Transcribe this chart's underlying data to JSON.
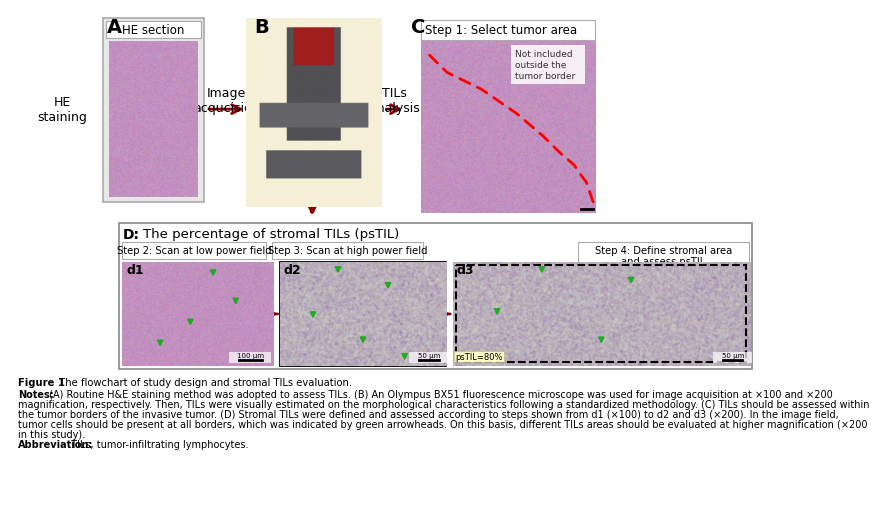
{
  "bg_color": "#ffffff",
  "panel_A_label": "A",
  "panel_B_label": "B",
  "panel_C_label": "C",
  "panel_D_label": "D:",
  "he_section_label": "HE section",
  "he_staining_label": "HE\nstaining",
  "image_acq_label": "Image\nacqucision",
  "tils_label": "TILs\nanalysis",
  "step1_label": "Step 1: Select tumor area",
  "not_included_label": "Not included\noutside the\ntumor border",
  "panel_D_title": "The percentage of stromal TILs (psTIL)",
  "step2_label": "Step 2: Scan at low power field",
  "step3_label": "Step 3: Scan at high power field",
  "step4_label": "Step 4: Define stromal area\nand assess psTIL",
  "d1_label": "d1",
  "d2_label": "d2",
  "d3_label": "d3",
  "scale_100um": "100 μm",
  "scale_50um_1": "50 μm",
  "scale_50um_2": "50 μm",
  "pstil_label": "psTIL=80%",
  "arrow_color": "#8b0000",
  "cap_fig": "Figure 1",
  "cap_fig_rest": "  The flowchart of study design and stromal TILs evaluation.",
  "cap_notes_bold": "Notes:",
  "cap_notes_1": " (A) Routine H&E staining method was adopted to assess TILs. (B) An Olympus BX51 fluorescence microscope was used for image acquisition at ×100 and ×200",
  "cap_notes_2": "magnification, respectively. Then, TILs were visually estimated on the morphological characteristics following a standardized methodology. (C) TILs should be assessed within",
  "cap_notes_3": "the tumor borders of the invasive tumor. (D) Stromal TILs were defined and assessed according to steps shown from d1 (×100) to d2 and d3 (×200). In the image field,",
  "cap_notes_4": "tumor cells should be present at all borders, which was indicated by green arrowheads. On this basis, different TILs areas should be evaluated at higher magnification (×200",
  "cap_notes_5": "in this study).",
  "cap_abbrev_bold": "Abbreviation:",
  "cap_abbrev_rest": " TILs, tumor-infiltrating lymphocytes.",
  "tissue_colors_1": [
    "#c87890",
    "#d890a8",
    "#e0a0b8",
    "#b86080",
    "#d080a0",
    "#c06878",
    "#e8b0c8",
    "#cc7890"
  ],
  "tissue_colors_2": [
    "#b870a0",
    "#c880b0",
    "#d090c0",
    "#a86090",
    "#c070a8",
    "#b86898",
    "#d898c0",
    "#bc7aa8"
  ],
  "tissue_white": "#f0e8f0",
  "panel_A_box_bg": "#e8e8e8",
  "panel_A_box_ec": "#aaaaaa",
  "panel_D_box_bg": "#ffffff",
  "panel_D_box_ec": "#888888",
  "step_box_bg": "#f5f5f5",
  "step_box_ec": "#999999"
}
